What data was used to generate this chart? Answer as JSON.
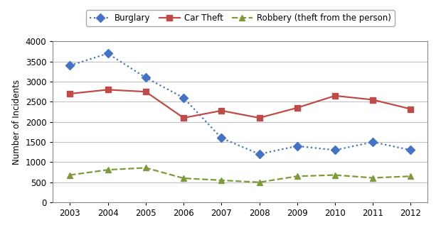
{
  "years": [
    2003,
    2004,
    2005,
    2006,
    2007,
    2008,
    2009,
    2010,
    2011,
    2012
  ],
  "burglary": [
    3400,
    3700,
    3100,
    2600,
    1600,
    1200,
    1400,
    1300,
    1500,
    1300
  ],
  "car_theft": [
    2700,
    2800,
    2750,
    2100,
    2280,
    2100,
    2350,
    2650,
    2550,
    2320
  ],
  "robbery": [
    680,
    810,
    860,
    600,
    550,
    500,
    650,
    680,
    610,
    650
  ],
  "burglary_color": "#4472C4",
  "car_theft_color": "#BE4B48",
  "robbery_color": "#7F9A3A",
  "ylabel": "Number of Incidents",
  "ylim": [
    0,
    4000
  ],
  "yticks": [
    0,
    500,
    1000,
    1500,
    2000,
    2500,
    3000,
    3500,
    4000
  ],
  "legend_labels": [
    "Burglary",
    "Car Theft",
    "Robbery (theft from the person)"
  ],
  "figsize": [
    6.2,
    3.24
  ],
  "dpi": 100,
  "bg_color": "#ffffff",
  "grid_color": "#c0c0c0"
}
